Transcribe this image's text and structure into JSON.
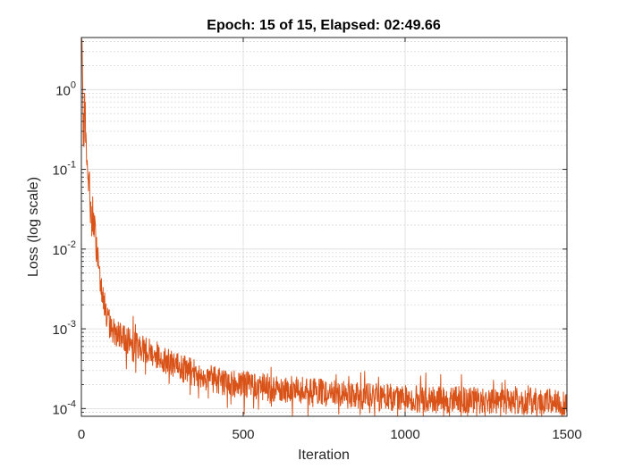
{
  "chart_data": {
    "type": "line",
    "title": "Epoch: 15 of 15, Elapsed: 02:49.66",
    "xlabel": "Iteration",
    "ylabel": "Loss (log scale)",
    "xlim": [
      0,
      1500
    ],
    "ylim": [
      8e-05,
      4.5
    ],
    "yscale": "log",
    "grid": true,
    "minor_grid": true,
    "color": "#D95319",
    "x_ticks": [
      {
        "value": 0,
        "label": "0"
      },
      {
        "value": 500,
        "label": "500"
      },
      {
        "value": 1000,
        "label": "1000"
      },
      {
        "value": 1500,
        "label": "1500"
      }
    ],
    "y_ticks": [
      {
        "value": 1,
        "base": "10",
        "exp": "0"
      },
      {
        "value": 0.1,
        "base": "10",
        "exp": "-1"
      },
      {
        "value": 0.01,
        "base": "10",
        "exp": "-2"
      },
      {
        "value": 0.001,
        "base": "10",
        "exp": "-3"
      },
      {
        "value": 0.0001,
        "base": "10",
        "exp": "-4"
      }
    ],
    "series": [
      {
        "x": [
          1,
          3,
          5,
          8,
          12,
          16,
          20,
          25,
          30,
          35,
          40,
          45,
          50,
          55,
          60,
          65,
          70,
          75,
          80,
          90,
          100,
          120,
          150,
          200,
          250,
          300,
          350,
          400,
          450,
          500,
          600,
          700,
          800,
          900,
          1000,
          1100,
          1200,
          1300,
          1400,
          1500
        ],
        "values": [
          4.0,
          1.5,
          0.35,
          0.3,
          0.5,
          0.12,
          0.07,
          0.06,
          0.025,
          0.02,
          0.018,
          0.012,
          0.008,
          0.006,
          0.004,
          0.0028,
          0.0021,
          0.0017,
          0.0014,
          0.0011,
          0.00095,
          0.0008,
          0.0007,
          0.00055,
          0.00042,
          0.00033,
          0.00028,
          0.00024,
          0.00021,
          0.0002,
          0.00018,
          0.000165,
          0.00015,
          0.00014,
          0.000135,
          0.00013,
          0.000128,
          0.000125,
          0.000123,
          0.00012
        ]
      }
    ]
  }
}
